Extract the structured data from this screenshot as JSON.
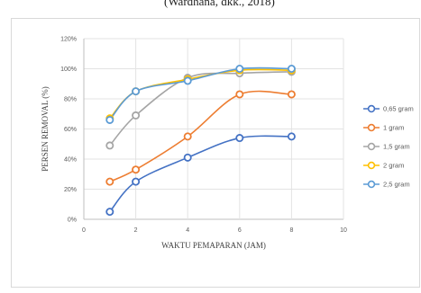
{
  "top_fragment": "(Wardhana, dkk., 2018)",
  "chart_data": {
    "type": "scatter",
    "xlabel": "WAKTU PEMAPARAN (JAM)",
    "ylabel": "PERSEN REMOVAL (%)",
    "xlim": [
      0,
      10
    ],
    "ylim": [
      0,
      120
    ],
    "x_ticks": [
      "0",
      "2",
      "4",
      "6",
      "8",
      "10"
    ],
    "y_ticks": [
      "0%",
      "20%",
      "40%",
      "60%",
      "80%",
      "100%",
      "120%"
    ],
    "grid": true,
    "smooth_lines": true,
    "legend_position": "right",
    "series": [
      {
        "name": "0,65 gram",
        "color": "#4472C4",
        "x": [
          1,
          2,
          4,
          6,
          8
        ],
        "y": [
          5,
          25,
          41,
          54,
          55
        ]
      },
      {
        "name": "1 gram",
        "color": "#ED7D31",
        "x": [
          1,
          2,
          4,
          6,
          8
        ],
        "y": [
          25,
          33,
          55,
          83,
          83
        ]
      },
      {
        "name": "1,5 gram",
        "color": "#A5A5A5",
        "x": [
          1,
          2,
          4,
          6,
          8
        ],
        "y": [
          49,
          69,
          94,
          97,
          98
        ]
      },
      {
        "name": "2 gram",
        "color": "#FFC000",
        "x": [
          1,
          2,
          4,
          6,
          8
        ],
        "y": [
          67,
          85,
          93,
          99,
          99
        ]
      },
      {
        "name": "2,5 gram",
        "color": "#5B9BD5",
        "x": [
          1,
          2,
          4,
          6,
          8
        ],
        "y": [
          66,
          85,
          92,
          100,
          100
        ]
      }
    ]
  }
}
